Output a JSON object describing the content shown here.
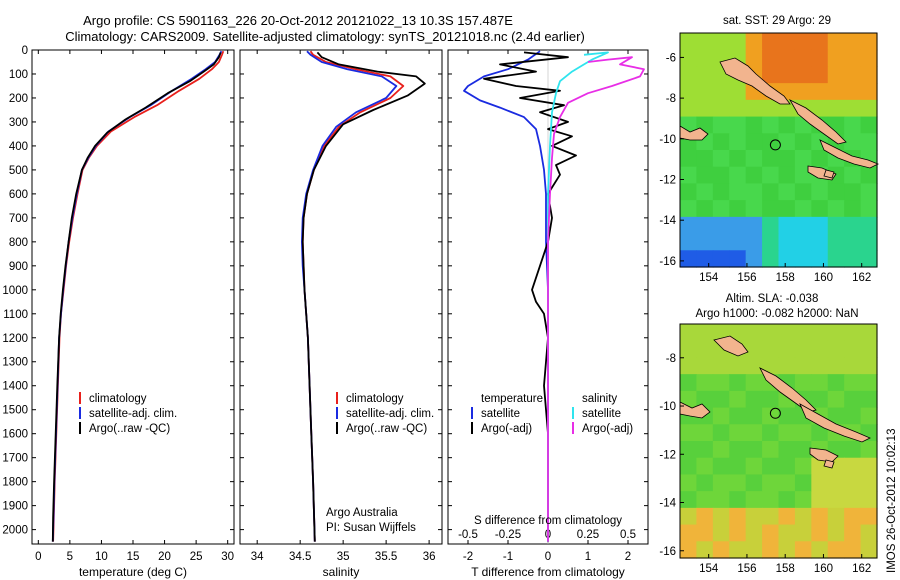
{
  "title_line1": "Argo profile: CS 5901163_226 20-Oct-2012 20121022_13 10.3S 157.487E",
  "title_line2": "Climatology: CARS2009. Satellite-adjusted climatology: synTS_20121018.nc (2.4d earlier)",
  "side_stamp": "IMOS 26-Oct-2012 10:02:13",
  "argo_credit_line1": "Argo Australia",
  "argo_credit_line2": "PI: Susan Wijffels",
  "colors": {
    "climatology": "#e8201c",
    "satellite": "#1a2be0",
    "argo": "#000000",
    "sat_salinity": "#2fe4ee",
    "argo_salinity_adj": "#e82ee6",
    "coast": "#f2b48e"
  },
  "depth_axis": {
    "ticks": [
      0,
      100,
      200,
      300,
      400,
      500,
      600,
      700,
      800,
      900,
      1000,
      1100,
      1200,
      1300,
      1400,
      1500,
      1600,
      1700,
      1800,
      1900,
      2000
    ],
    "ylim": [
      0,
      2060
    ]
  },
  "chart_data": [
    {
      "type": "line",
      "name": "temperature",
      "xlabel": "temperature (deg C)",
      "xlim": [
        -1,
        31
      ],
      "xticks": [
        0,
        5,
        10,
        15,
        20,
        25,
        30
      ],
      "legend": [
        "climatology",
        "satellite-adj. clim.",
        "Argo(..raw -QC)"
      ],
      "series": [
        {
          "name": "climatology",
          "color_key": "climatology",
          "points": [
            [
              29.3,
              5
            ],
            [
              29.1,
              20
            ],
            [
              28.6,
              50
            ],
            [
              27.5,
              80
            ],
            [
              25.5,
              120
            ],
            [
              22.3,
              170
            ],
            [
              18.8,
              230
            ],
            [
              15.2,
              280
            ],
            [
              11.5,
              340
            ],
            [
              9.3,
              400
            ],
            [
              8.0,
              450
            ],
            [
              7.0,
              500
            ],
            [
              6.2,
              600
            ],
            [
              5.5,
              700
            ],
            [
              4.9,
              800
            ],
            [
              4.4,
              900
            ],
            [
              4.0,
              1000
            ],
            [
              3.6,
              1100
            ],
            [
              3.35,
              1200
            ],
            [
              3.1,
              1400
            ],
            [
              2.85,
              1600
            ],
            [
              2.6,
              1800
            ],
            [
              2.45,
              1950
            ],
            [
              2.35,
              2050
            ]
          ]
        },
        {
          "name": "satellite-adj. clim.",
          "color_key": "satellite",
          "points": [
            [
              29.0,
              5
            ],
            [
              28.7,
              20
            ],
            [
              28.0,
              50
            ],
            [
              26.5,
              80
            ],
            [
              24.3,
              120
            ],
            [
              21.2,
              170
            ],
            [
              17.8,
              230
            ],
            [
              14.5,
              280
            ],
            [
              11.1,
              340
            ],
            [
              9.1,
              400
            ],
            [
              7.9,
              450
            ],
            [
              6.9,
              500
            ],
            [
              6.1,
              600
            ],
            [
              5.4,
              700
            ],
            [
              4.8,
              800
            ],
            [
              4.35,
              900
            ],
            [
              3.95,
              1000
            ],
            [
              3.6,
              1100
            ],
            [
              3.3,
              1200
            ],
            [
              3.05,
              1400
            ],
            [
              2.8,
              1600
            ],
            [
              2.55,
              1800
            ],
            [
              2.4,
              1950
            ],
            [
              2.3,
              2050
            ]
          ]
        },
        {
          "name": "Argo(..raw -QC)",
          "color_key": "argo",
          "points": [
            [
              28.9,
              10
            ],
            [
              28.6,
              30
            ],
            [
              27.8,
              60
            ],
            [
              26.2,
              90
            ],
            [
              24.0,
              130
            ],
            [
              20.5,
              180
            ],
            [
              17.0,
              240
            ],
            [
              13.8,
              290
            ],
            [
              10.9,
              345
            ],
            [
              9.0,
              400
            ],
            [
              7.8,
              450
            ],
            [
              6.9,
              500
            ],
            [
              6.0,
              600
            ],
            [
              5.3,
              700
            ],
            [
              4.8,
              800
            ],
            [
              4.3,
              900
            ],
            [
              3.9,
              1000
            ],
            [
              3.55,
              1100
            ],
            [
              3.3,
              1200
            ],
            [
              3.0,
              1400
            ],
            [
              2.75,
              1600
            ],
            [
              2.5,
              1800
            ],
            [
              2.35,
              1950
            ],
            [
              2.3,
              2050
            ]
          ]
        }
      ]
    },
    {
      "type": "line",
      "name": "salinity",
      "xlabel": "salinity",
      "xlim": [
        33.8,
        36.15
      ],
      "xticks": [
        34,
        34.5,
        35,
        35.5,
        36
      ],
      "xticklabels": [
        "34",
        "34.5",
        "35",
        "35.5",
        "36"
      ],
      "legend": [
        "climatology",
        "satellite-adj. clim.",
        "Argo(..raw -QC)"
      ],
      "series": [
        {
          "name": "climatology",
          "color_key": "climatology",
          "points": [
            [
              34.62,
              5
            ],
            [
              34.65,
              20
            ],
            [
              34.8,
              50
            ],
            [
              35.15,
              80
            ],
            [
              35.55,
              110
            ],
            [
              35.7,
              150
            ],
            [
              35.55,
              200
            ],
            [
              35.2,
              260
            ],
            [
              34.95,
              320
            ],
            [
              34.78,
              400
            ],
            [
              34.66,
              500
            ],
            [
              34.58,
              600
            ],
            [
              34.54,
              700
            ],
            [
              34.53,
              800
            ],
            [
              34.54,
              900
            ],
            [
              34.55,
              1000
            ],
            [
              34.57,
              1100
            ],
            [
              34.59,
              1200
            ],
            [
              34.61,
              1400
            ],
            [
              34.63,
              1600
            ],
            [
              34.65,
              1800
            ],
            [
              34.67,
              2050
            ]
          ]
        },
        {
          "name": "satellite-adj. clim.",
          "color_key": "satellite",
          "points": [
            [
              34.58,
              5
            ],
            [
              34.62,
              20
            ],
            [
              34.75,
              50
            ],
            [
              35.05,
              80
            ],
            [
              35.45,
              110
            ],
            [
              35.62,
              150
            ],
            [
              35.5,
              200
            ],
            [
              35.15,
              260
            ],
            [
              34.92,
              320
            ],
            [
              34.76,
              400
            ],
            [
              34.65,
              500
            ],
            [
              34.57,
              600
            ],
            [
              34.53,
              700
            ],
            [
              34.52,
              800
            ],
            [
              34.53,
              900
            ],
            [
              34.55,
              1000
            ],
            [
              34.57,
              1100
            ],
            [
              34.59,
              1200
            ],
            [
              34.61,
              1400
            ],
            [
              34.63,
              1600
            ],
            [
              34.65,
              1800
            ],
            [
              34.67,
              2050
            ]
          ]
        },
        {
          "name": "Argo(..raw -QC)",
          "color_key": "argo",
          "points": [
            [
              34.7,
              10
            ],
            [
              34.75,
              30
            ],
            [
              34.95,
              60
            ],
            [
              35.4,
              90
            ],
            [
              35.85,
              110
            ],
            [
              35.95,
              140
            ],
            [
              35.75,
              190
            ],
            [
              35.35,
              250
            ],
            [
              35.0,
              310
            ],
            [
              34.8,
              400
            ],
            [
              34.66,
              500
            ],
            [
              34.58,
              600
            ],
            [
              34.54,
              700
            ],
            [
              34.53,
              800
            ],
            [
              34.54,
              900
            ],
            [
              34.55,
              1000
            ],
            [
              34.57,
              1100
            ],
            [
              34.59,
              1200
            ],
            [
              34.61,
              1400
            ],
            [
              34.63,
              1600
            ],
            [
              34.65,
              1800
            ],
            [
              34.67,
              2050
            ]
          ]
        }
      ]
    },
    {
      "type": "line",
      "name": "difference",
      "xlabel_top": "S difference from climatology",
      "xlabel_bottom": "T difference from climatology",
      "xlim": [
        -2.5,
        2.5
      ],
      "xticks": [
        -2,
        -1,
        0,
        1,
        2
      ],
      "top_ticks": [
        {
          "label": "-0.5",
          "value": -2
        },
        {
          "label": "-0.25",
          "value": -1
        },
        {
          "label": "0",
          "value": 0
        },
        {
          "label": "0.25",
          "value": 1
        },
        {
          "label": "0.5",
          "value": 2
        }
      ],
      "legend_left_title": "temperature",
      "legend_right_title": "salinity",
      "legend_left": [
        "satellite",
        "Argo(-adj)"
      ],
      "legend_right": [
        "satellite",
        "Argo(-adj)"
      ],
      "series": [
        {
          "name": "temperature satellite",
          "color_key": "satellite",
          "points": [
            [
              -0.2,
              5
            ],
            [
              -0.5,
              40
            ],
            [
              -1.0,
              80
            ],
            [
              -1.6,
              110
            ],
            [
              -2.0,
              150
            ],
            [
              -2.1,
              170
            ],
            [
              -1.7,
              210
            ],
            [
              -1.2,
              240
            ],
            [
              -0.6,
              280
            ],
            [
              -0.3,
              330
            ],
            [
              -0.2,
              400
            ],
            [
              -0.1,
              500
            ],
            [
              -0.05,
              600
            ],
            [
              -0.05,
              800
            ],
            [
              0,
              1000
            ],
            [
              0,
              2050
            ]
          ]
        },
        {
          "name": "temperature Argo(-adj)",
          "color_key": "argo",
          "points": [
            [
              -0.6,
              10
            ],
            [
              0.5,
              30
            ],
            [
              -1.2,
              60
            ],
            [
              -0.3,
              90
            ],
            [
              -1.6,
              120
            ],
            [
              -0.8,
              150
            ],
            [
              0.3,
              170
            ],
            [
              -0.7,
              200
            ],
            [
              0.4,
              230
            ],
            [
              -0.2,
              260
            ],
            [
              0.5,
              300
            ],
            [
              0.0,
              330
            ],
            [
              0.6,
              360
            ],
            [
              0.1,
              400
            ],
            [
              0.7,
              440
            ],
            [
              0.2,
              480
            ],
            [
              0.3,
              520
            ],
            [
              0.0,
              600
            ],
            [
              0.1,
              700
            ],
            [
              0.0,
              800
            ],
            [
              -0.2,
              900
            ],
            [
              -0.4,
              1000
            ],
            [
              -0.3,
              1050
            ],
            [
              -0.1,
              1100
            ],
            [
              0,
              1200
            ],
            [
              -0.1,
              1400
            ],
            [
              0,
              1600
            ],
            [
              0,
              2050
            ]
          ]
        },
        {
          "name": "salinity satellite",
          "color_key": "sat_salinity",
          "points": [
            [
              0.9,
              20
            ],
            [
              1.5,
              10
            ],
            [
              1.1,
              40
            ],
            [
              0.9,
              60
            ],
            [
              0.6,
              90
            ],
            [
              0.3,
              130
            ],
            [
              0.2,
              180
            ],
            [
              0.1,
              260
            ],
            [
              0.05,
              400
            ],
            [
              0,
              600
            ],
            [
              0,
              2050
            ]
          ]
        },
        {
          "name": "salinity Argo(-adj)",
          "color_key": "argo_salinity_adj",
          "points": [
            [
              1.0,
              50
            ],
            [
              1.5,
              40
            ],
            [
              2.1,
              30
            ],
            [
              1.8,
              60
            ],
            [
              2.4,
              80
            ],
            [
              2.3,
              110
            ],
            [
              1.6,
              150
            ],
            [
              1.0,
              180
            ],
            [
              0.5,
              220
            ],
            [
              0.3,
              280
            ],
            [
              0.15,
              350
            ],
            [
              0.1,
              450
            ],
            [
              0.05,
              600
            ],
            [
              0,
              800
            ],
            [
              0,
              2050
            ]
          ]
        }
      ]
    },
    {
      "type": "heatmap",
      "name": "sat-sst-map",
      "title": "sat. SST: 29  Argo: 29",
      "xlim": [
        152.5,
        162.8
      ],
      "ylim": [
        -16.3,
        -4.8
      ],
      "xticks": [
        154,
        156,
        158,
        160,
        162
      ],
      "yticks": [
        -6,
        -8,
        -10,
        -12,
        -14,
        -16
      ],
      "argo_position": {
        "lon": 157.487,
        "lat": -10.3
      }
    },
    {
      "type": "heatmap",
      "name": "altimetry-sla-map",
      "title_line1": "Altim. SLA: -0.038",
      "title_line2": "Argo h1000: -0.082 h2000: NaN",
      "xlim": [
        152.5,
        162.8
      ],
      "ylim": [
        -16.3,
        -6.6
      ],
      "xticks": [
        154,
        156,
        158,
        160,
        162
      ],
      "yticks": [
        -8,
        -10,
        -12,
        -14,
        -16
      ],
      "argo_position": {
        "lon": 157.487,
        "lat": -10.3
      }
    }
  ]
}
